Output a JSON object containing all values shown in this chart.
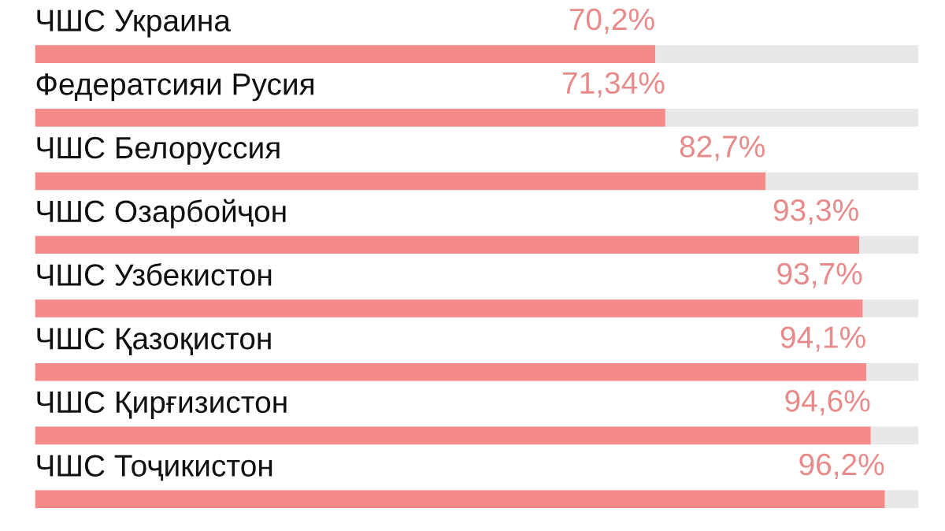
{
  "chart_data": {
    "type": "bar",
    "orientation": "horizontal",
    "stacked": true,
    "categories": [
      "ЧШС Украина",
      "Федератсияи Русия",
      "ЧШС Белоруссия",
      "ЧШС Озарбойҷон",
      "ЧШС Узбекистон",
      "ЧШС Қазоқистон",
      "ЧШС Қирғизистон",
      "ЧШС Тоҷикистон"
    ],
    "xlim": [
      0,
      100
    ],
    "series": [
      {
        "color": "#f58a8a",
        "values": [
          70.2,
          71.34,
          82.7,
          93.3,
          93.7,
          94.1,
          94.6,
          96.2
        ],
        "value_labels": [
          "70,2%",
          "71,34%",
          "82,7%",
          "93,3%",
          "93,7%",
          "94,1%",
          "94,6%",
          "96,2%"
        ]
      },
      {
        "color": "#e8e8e8",
        "values": [
          29.8,
          28.66,
          17.3,
          6.7,
          6.3,
          5.9,
          5.4,
          3.8
        ]
      }
    ]
  }
}
